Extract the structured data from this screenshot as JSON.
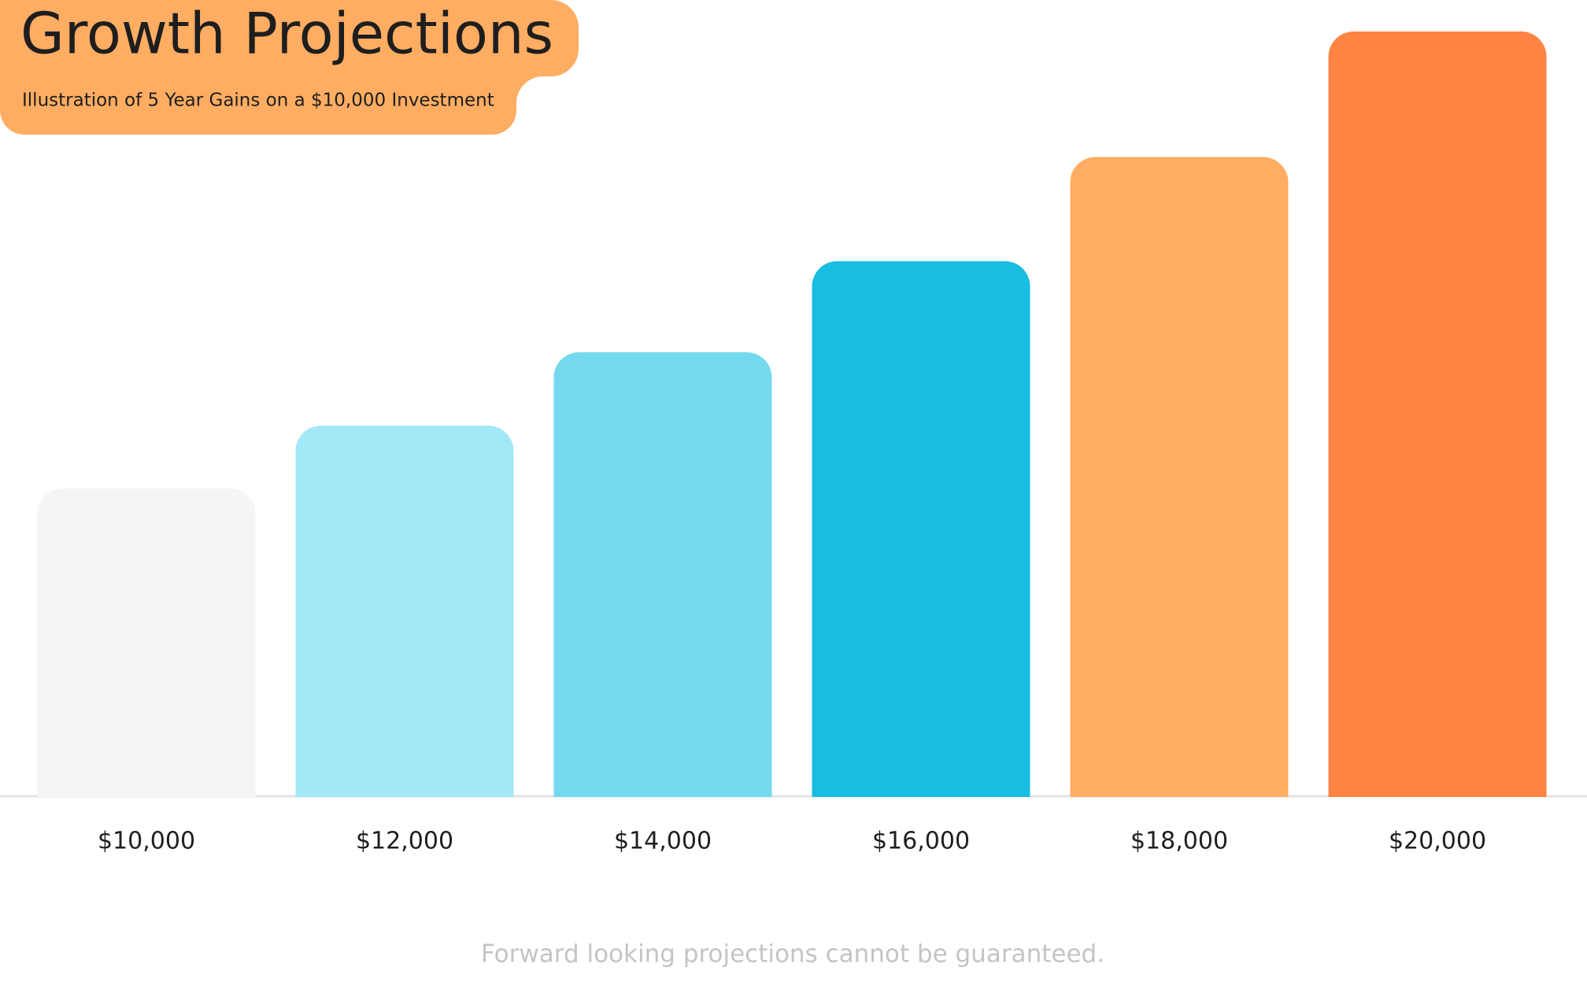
{
  "chart_data": {
    "type": "bar",
    "title": "Growth Projections",
    "subtitle": "Illustration of 5 Year Gains on a $10,000 Investment",
    "categories": [
      "$10,000",
      "$12,000",
      "$14,000",
      "$16,000",
      "$18,000",
      "$20,000"
    ],
    "values": [
      40.3,
      48.5,
      58.1,
      70.0,
      83.6,
      100
    ],
    "colors": [
      "#f5f5f5",
      "#a3e8f7",
      "#74d9ef",
      "#19bde2",
      "#ffad62",
      "#ff8343"
    ],
    "ylim": [
      0,
      100
    ],
    "footnote": "Forward looking projections cannot be guaranteed."
  }
}
